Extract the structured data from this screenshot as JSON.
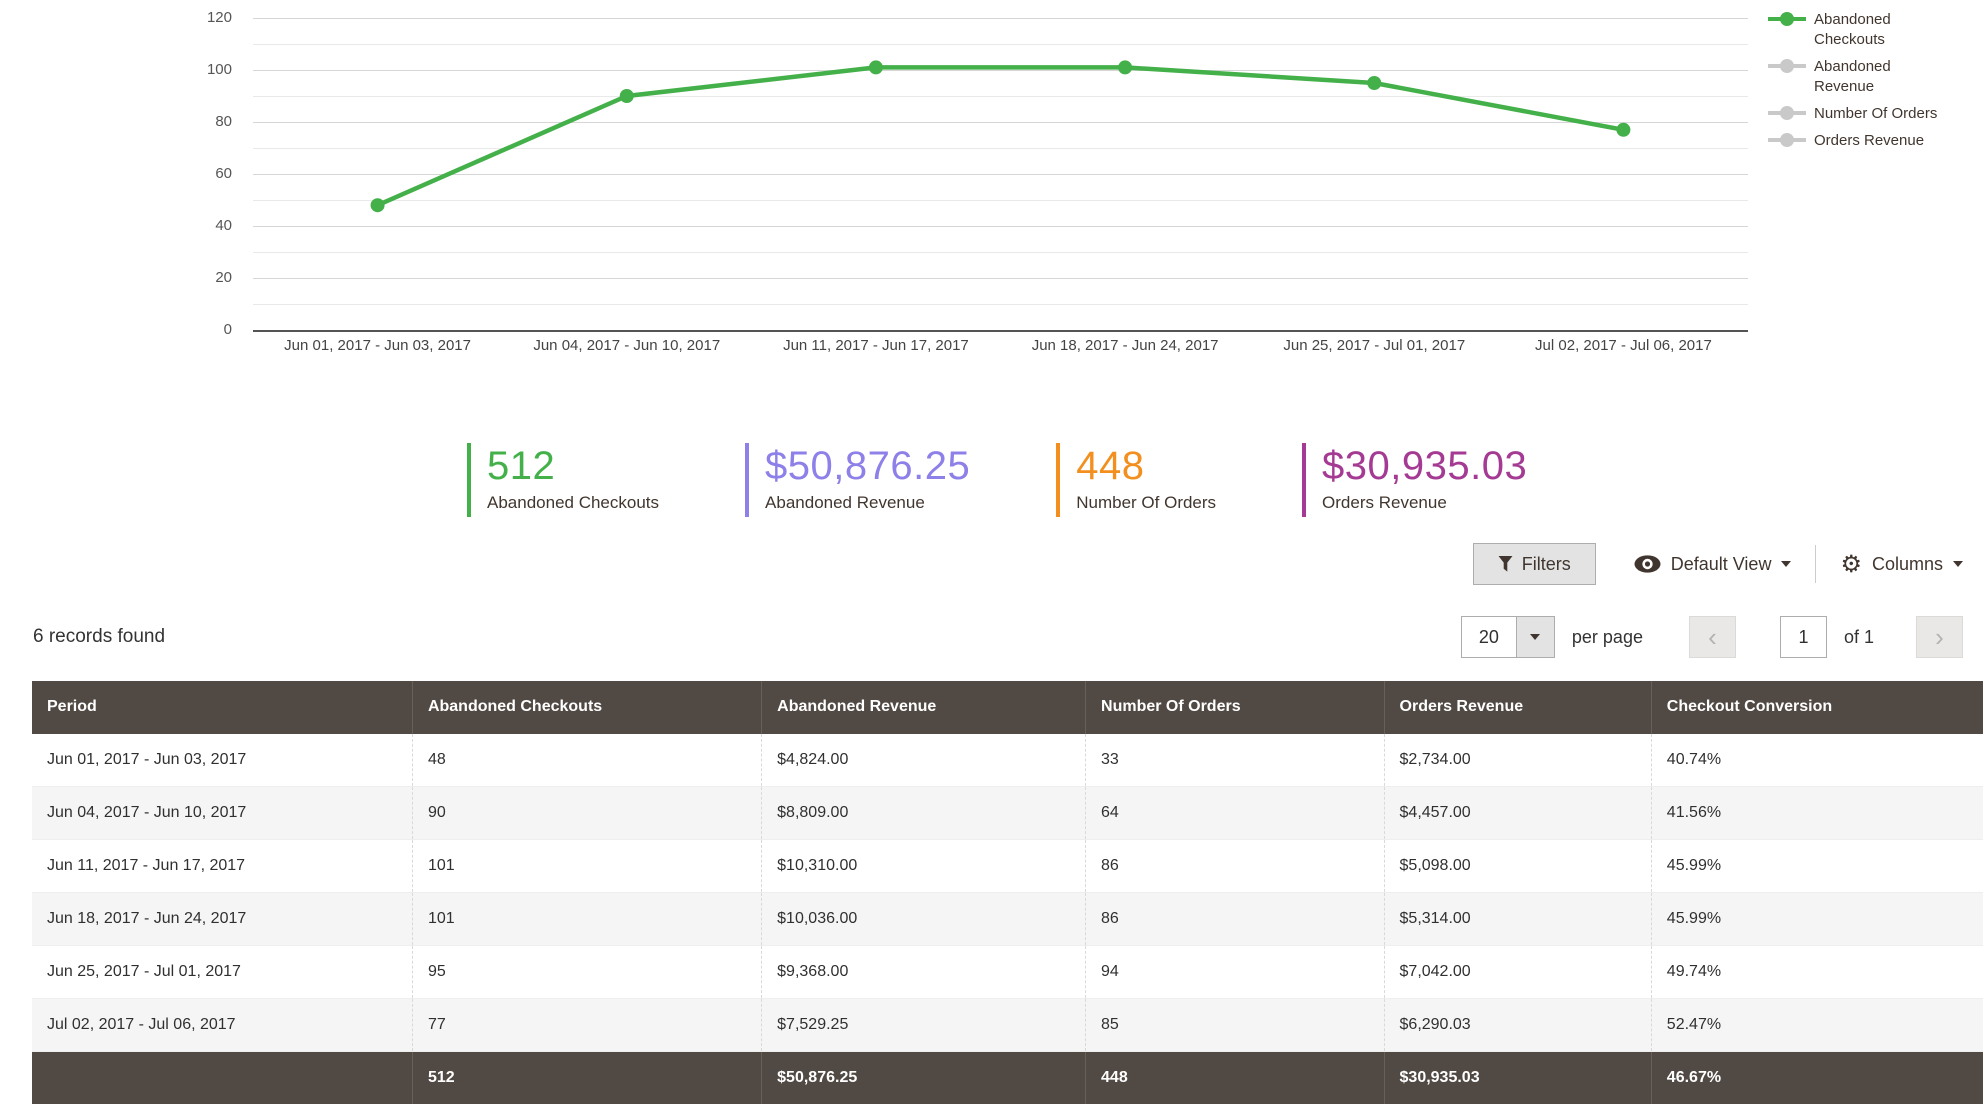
{
  "chart_data": {
    "type": "line",
    "categories": [
      "Jun 01, 2017 - Jun 03, 2017",
      "Jun 04, 2017 - Jun 10, 2017",
      "Jun 11, 2017 - Jun 17, 2017",
      "Jun 18, 2017 - Jun 24, 2017",
      "Jun 25, 2017 - Jul 01, 2017",
      "Jul 02, 2017 - Jul 06, 2017"
    ],
    "series": [
      {
        "name": "Abandoned Checkouts",
        "values": [
          48,
          90,
          101,
          101,
          95,
          77
        ],
        "color": "#44b04a",
        "active": true
      },
      {
        "name": "Abandoned Revenue",
        "values": [],
        "color": "#c9c9c9",
        "active": false
      },
      {
        "name": "Number Of Orders",
        "values": [],
        "color": "#c9c9c9",
        "active": false
      },
      {
        "name": "Orders Revenue",
        "values": [],
        "color": "#c9c9c9",
        "active": false
      }
    ],
    "ylim": [
      0,
      120
    ],
    "yticks": [
      0,
      20,
      40,
      60,
      80,
      100,
      120
    ],
    "minor_tick_step": 10,
    "grid": true,
    "legend_position": "right"
  },
  "summary": [
    {
      "value": "512",
      "label": "Abandoned Checkouts",
      "color": "#44b04a"
    },
    {
      "value": "$50,876.25",
      "label": "Abandoned Revenue",
      "color": "#8d80e8"
    },
    {
      "value": "448",
      "label": "Number Of Orders",
      "color": "#f28f1e"
    },
    {
      "value": "$30,935.03",
      "label": "Orders Revenue",
      "color": "#a43a93"
    }
  ],
  "toolbar": {
    "filters_label": "Filters",
    "view_label": "Default View",
    "columns_label": "Columns"
  },
  "grid_info": {
    "records_text": "6 records found",
    "per_page_value": "20",
    "per_page_label": "per page",
    "prev_glyph": "‹",
    "next_glyph": "›",
    "page_value": "1",
    "of_label": "of 1",
    "gear_glyph": "⚙"
  },
  "table": {
    "columns": [
      "Period",
      "Abandoned Checkouts",
      "Abandoned Revenue",
      "Number Of Orders",
      "Orders Revenue",
      "Checkout Conversion"
    ],
    "rows": [
      [
        "Jun 01, 2017 - Jun 03, 2017",
        "48",
        "$4,824.00",
        "33",
        "$2,734.00",
        "40.74%"
      ],
      [
        "Jun 04, 2017 - Jun 10, 2017",
        "90",
        "$8,809.00",
        "64",
        "$4,457.00",
        "41.56%"
      ],
      [
        "Jun 11, 2017 - Jun 17, 2017",
        "101",
        "$10,310.00",
        "86",
        "$5,098.00",
        "45.99%"
      ],
      [
        "Jun 18, 2017 - Jun 24, 2017",
        "101",
        "$10,036.00",
        "86",
        "$5,314.00",
        "45.99%"
      ],
      [
        "Jun 25, 2017 - Jul 01, 2017",
        "95",
        "$9,368.00",
        "94",
        "$7,042.00",
        "49.74%"
      ],
      [
        "Jul 02, 2017 - Jul 06, 2017",
        "77",
        "$7,529.25",
        "85",
        "$6,290.03",
        "52.47%"
      ]
    ],
    "totals": [
      "",
      "512",
      "$50,876.25",
      "448",
      "$30,935.03",
      "46.67%"
    ],
    "header_bg": "#514943"
  }
}
